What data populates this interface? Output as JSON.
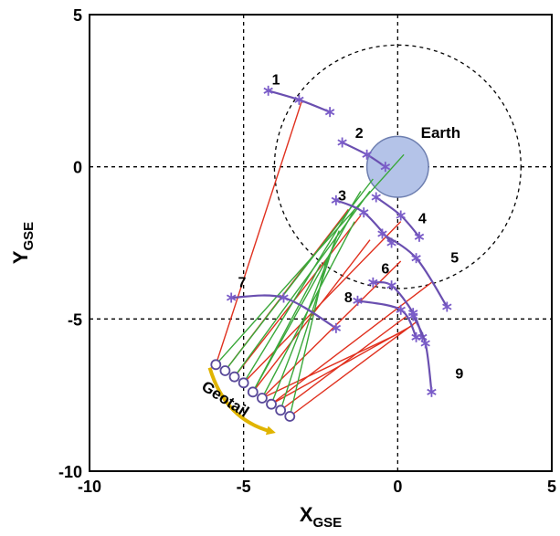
{
  "chart_data": {
    "type": "scatter",
    "title": "",
    "xlabel": {
      "main": "X",
      "sub": "GSE"
    },
    "ylabel": {
      "main": "Y",
      "sub": "GSE"
    },
    "xlim": [
      -10,
      5
    ],
    "ylim": [
      -10,
      5
    ],
    "x_ticks": [
      -10,
      -5,
      0,
      5
    ],
    "y_ticks": [
      -10,
      -5,
      0,
      5
    ],
    "gridlines": {
      "x": [
        -5,
        0
      ],
      "y": [
        -5,
        0
      ],
      "style": "dashed"
    },
    "earth": {
      "label": "Earth",
      "center": [
        0,
        0
      ],
      "radius": 1.0,
      "color": "#b4c3e8"
    },
    "dashed_circle": {
      "center": [
        0,
        0
      ],
      "radius": 4.0
    },
    "geotail": {
      "label": "Geotail",
      "points": [
        [
          -5.9,
          -6.5
        ],
        [
          -5.6,
          -6.7
        ],
        [
          -5.3,
          -6.9
        ],
        [
          -5.0,
          -7.1
        ],
        [
          -4.7,
          -7.4
        ],
        [
          -4.4,
          -7.6
        ],
        [
          -4.1,
          -7.8
        ],
        [
          -3.8,
          -8.0
        ],
        [
          -3.5,
          -8.2
        ]
      ]
    },
    "series": [
      {
        "label": "1",
        "points": [
          [
            -4.2,
            2.5
          ],
          [
            -3.2,
            2.2
          ],
          [
            -2.2,
            1.8
          ]
        ]
      },
      {
        "label": "2",
        "points": [
          [
            -1.8,
            0.8
          ],
          [
            -1.0,
            0.4
          ],
          [
            -0.4,
            0.0
          ]
        ]
      },
      {
        "label": "3",
        "points": [
          [
            -2.0,
            -1.1
          ],
          [
            -1.1,
            -1.5
          ],
          [
            -0.2,
            -2.5
          ]
        ]
      },
      {
        "label": "4",
        "points": [
          [
            -0.7,
            -1.0
          ],
          [
            0.1,
            -1.6
          ],
          [
            0.7,
            -2.3
          ]
        ]
      },
      {
        "label": "5",
        "points": [
          [
            -0.5,
            -2.2
          ],
          [
            0.6,
            -3.0
          ],
          [
            1.6,
            -4.6
          ]
        ]
      },
      {
        "label": "6",
        "points": [
          [
            -0.8,
            -3.8
          ],
          [
            -0.2,
            -3.9
          ],
          [
            0.5,
            -4.8
          ],
          [
            0.8,
            -5.6
          ]
        ]
      },
      {
        "label": "7",
        "points": [
          [
            -5.4,
            -4.3
          ],
          [
            -3.7,
            -4.3
          ],
          [
            -2.0,
            -5.3
          ]
        ]
      },
      {
        "label": "8",
        "points": [
          [
            -1.3,
            -4.4
          ],
          [
            0.1,
            -4.7
          ],
          [
            0.6,
            -5.6
          ]
        ]
      },
      {
        "label": "9",
        "points": [
          [
            0.5,
            -4.9
          ],
          [
            0.9,
            -5.8
          ],
          [
            1.1,
            -7.4
          ]
        ]
      }
    ],
    "red_lines": [
      {
        "from": [
          -5.9,
          -6.5
        ],
        "to": [
          -3.1,
          2.2
        ]
      },
      {
        "from": [
          -5.6,
          -6.7
        ],
        "to": [
          -1.6,
          -1.4
        ]
      },
      {
        "from": [
          -5.3,
          -6.9
        ],
        "to": [
          -1.2,
          -1.6
        ]
      },
      {
        "from": [
          -5.0,
          -7.1
        ],
        "to": [
          0.1,
          -1.8
        ]
      },
      {
        "from": [
          -4.7,
          -7.4
        ],
        "to": [
          -0.9,
          -2.4
        ]
      },
      {
        "from": [
          -4.4,
          -7.6
        ],
        "to": [
          0.1,
          -3.1
        ]
      },
      {
        "from": [
          -4.1,
          -7.8
        ],
        "to": [
          1.1,
          -3.8
        ]
      },
      {
        "from": [
          -3.8,
          -8.0
        ],
        "to": [
          0.3,
          -4.9
        ]
      },
      {
        "from": [
          -3.5,
          -8.2
        ],
        "to": [
          0.6,
          -5.1
        ]
      },
      {
        "from": [
          -4.1,
          -7.8
        ],
        "to": [
          0.5,
          -5.2
        ]
      },
      {
        "from": [
          -4.4,
          -7.6
        ],
        "to": [
          0.2,
          -5.4
        ]
      }
    ],
    "green_lines": [
      {
        "from": [
          -5.9,
          -6.5
        ],
        "to": [
          0.2,
          0.4
        ]
      },
      {
        "from": [
          -5.6,
          -6.7
        ],
        "to": [
          -0.8,
          -0.4
        ]
      },
      {
        "from": [
          -5.3,
          -6.9
        ],
        "to": [
          -0.9,
          -0.8
        ]
      },
      {
        "from": [
          -5.0,
          -7.1
        ],
        "to": [
          -1.2,
          -0.8
        ]
      },
      {
        "from": [
          -4.7,
          -7.4
        ],
        "to": [
          -1.4,
          -1.4
        ]
      },
      {
        "from": [
          -4.4,
          -7.6
        ],
        "to": [
          -1.4,
          -1.8
        ]
      },
      {
        "from": [
          -4.1,
          -7.8
        ],
        "to": [
          -1.9,
          -2.1
        ]
      },
      {
        "from": [
          -3.8,
          -8.0
        ],
        "to": [
          -2.0,
          -2.3
        ]
      },
      {
        "from": [
          -3.5,
          -8.2
        ],
        "to": [
          -2.3,
          -3.0
        ]
      },
      {
        "from": [
          -4.7,
          -7.4
        ],
        "to": [
          -2.5,
          -3.2
        ]
      }
    ],
    "colors": {
      "curve": "#6a4fb0",
      "marker": "#7a5cc8",
      "red_line": "#e0301e",
      "green_line": "#3aa83a",
      "arrow": "#e0b400",
      "circle_marker": "#5a4a9a"
    }
  }
}
